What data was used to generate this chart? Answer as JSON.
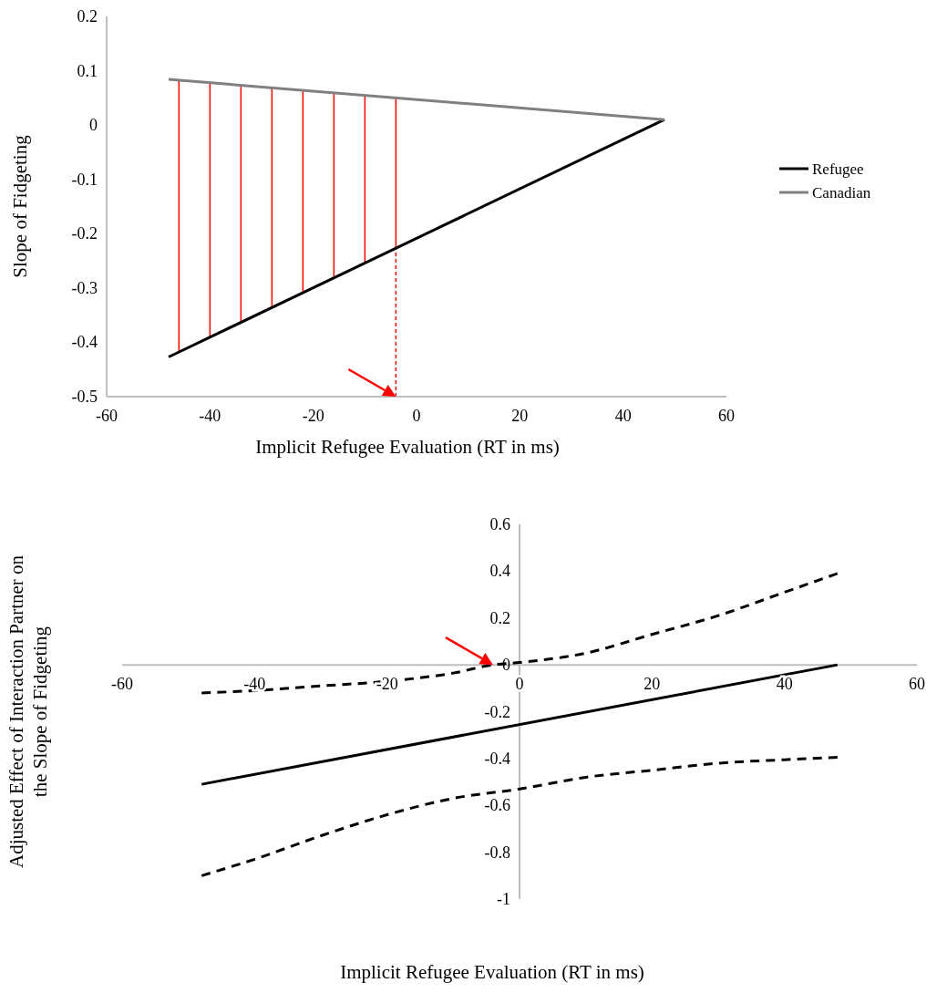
{
  "chart_data": [
    {
      "type": "line",
      "xlabel": "Implicit Refugee Evaluation (RT in ms)",
      "ylabel": "Slope of Fidgeting",
      "series": [
        {
          "name": "Refugee",
          "color": "#000000",
          "x": [
            -48,
            48
          ],
          "values": [
            -0.427,
            0.01
          ]
        },
        {
          "name": "Canadian",
          "color": "#808080",
          "x": [
            -48,
            48
          ],
          "values": [
            0.084,
            0.01
          ]
        }
      ],
      "xlim": [
        -60,
        60
      ],
      "xticks": [
        -60,
        -40,
        -20,
        0,
        20,
        40,
        60
      ],
      "ylim": [
        -0.5,
        0.2
      ],
      "yticks": [
        -0.5,
        -0.4,
        -0.3,
        -0.2,
        -0.1,
        0,
        0.1,
        0.2
      ],
      "grid": false,
      "legend": "right",
      "marker": "none",
      "line_style": "solid",
      "ref_lines": [
        {
          "axis": "x",
          "value": -46,
          "color": "#ff0000",
          "line_style": "solid"
        },
        {
          "axis": "x",
          "value": -40,
          "color": "#ff0000",
          "line_style": "solid"
        },
        {
          "axis": "x",
          "value": -34,
          "color": "#ff0000",
          "line_style": "solid"
        },
        {
          "axis": "x",
          "value": -28,
          "color": "#ff0000",
          "line_style": "solid"
        },
        {
          "axis": "x",
          "value": -22,
          "color": "#ff0000",
          "line_style": "solid"
        },
        {
          "axis": "x",
          "value": -16,
          "color": "#ff0000",
          "line_style": "solid"
        },
        {
          "axis": "x",
          "value": -10,
          "color": "#ff0000",
          "line_style": "solid"
        },
        {
          "axis": "x",
          "value": -4,
          "color": "#ff0000",
          "line_style": "solid"
        },
        {
          "axis": "x",
          "value": -4,
          "color": "#ff0000",
          "line_style": "dashed"
        }
      ]
    },
    {
      "type": "line",
      "xlabel": "Implicit Refugee Evaluation (RT in ms)",
      "ylabel": "Adjusted Effect of Interaction Partner on\nthe Slope of Fidgeting",
      "series": [
        {
          "color": "#000000",
          "x": [
            -48,
            48
          ],
          "values": [
            -0.51,
            0
          ],
          "line_style": "solid"
        },
        {
          "color": "#000000",
          "x": [
            -48,
            -40,
            -30,
            -20,
            -10,
            -4,
            0,
            10,
            20,
            30,
            40,
            48
          ],
          "values": [
            -0.12,
            -0.11,
            -0.09,
            -0.07,
            -0.035,
            0,
            0.01,
            0.05,
            0.13,
            0.21,
            0.31,
            0.39
          ],
          "line_style": "dashed"
        },
        {
          "color": "#000000",
          "x": [
            -48,
            -40,
            -30,
            -20,
            -10,
            0,
            10,
            20,
            30,
            40,
            48
          ],
          "values": [
            -0.9,
            -0.83,
            -0.73,
            -0.64,
            -0.57,
            -0.53,
            -0.48,
            -0.45,
            -0.42,
            -0.405,
            -0.395
          ],
          "line_style": "dashed"
        }
      ],
      "xlim": [
        -60,
        60
      ],
      "xticks": [
        -60,
        -40,
        -20,
        0,
        20,
        40,
        60
      ],
      "ylim": [
        -1,
        0.6
      ],
      "yticks": [
        -1,
        -0.8,
        -0.6,
        -0.4,
        -0.2,
        0,
        0.2,
        0.4,
        0.6
      ],
      "grid": false,
      "legend": false,
      "marker": "none"
    }
  ]
}
